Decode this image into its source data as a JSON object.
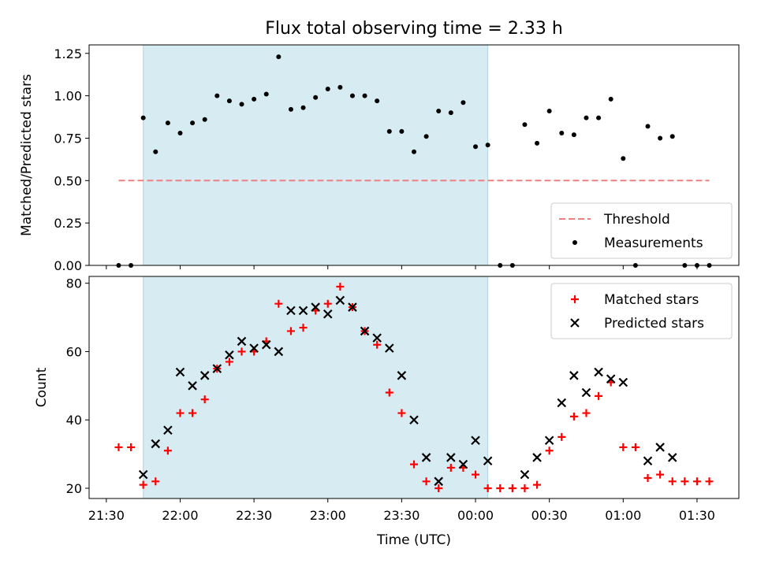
{
  "chart_data": {
    "title": "Flux total observing time = 2.33 h",
    "xlabel": "Time (UTC)",
    "x_ticks": [
      "21:30",
      "22:00",
      "22:30",
      "23:00",
      "23:30",
      "00:00",
      "00:30",
      "01:00",
      "01:30"
    ],
    "shaded_interval": {
      "start": "21:45",
      "end": "00:05",
      "color": "#add8e6"
    },
    "panels": [
      {
        "type": "scatter",
        "ylabel": "Matched/Predicted stars",
        "ylim": [
          0,
          1.3
        ],
        "y_ticks": [
          "0.00",
          "0.25",
          "0.50",
          "0.75",
          "1.00",
          "1.25"
        ],
        "legend_position": "lower-right",
        "threshold": {
          "name": "Threshold",
          "value": 0.5,
          "x_range": [
            "21:35",
            "01:35"
          ],
          "color": "#f08080"
        },
        "series": [
          {
            "name": "Measurements",
            "color": "#000000",
            "points": [
              [
                "21:35",
                0.0
              ],
              [
                "21:40",
                0.0
              ],
              [
                "21:45",
                0.87
              ],
              [
                "21:50",
                0.67
              ],
              [
                "21:55",
                0.84
              ],
              [
                "22:00",
                0.78
              ],
              [
                "22:05",
                0.84
              ],
              [
                "22:10",
                0.86
              ],
              [
                "22:15",
                1.0
              ],
              [
                "22:20",
                0.97
              ],
              [
                "22:25",
                0.95
              ],
              [
                "22:30",
                0.98
              ],
              [
                "22:35",
                1.01
              ],
              [
                "22:40",
                1.23
              ],
              [
                "22:45",
                0.92
              ],
              [
                "22:50",
                0.93
              ],
              [
                "22:55",
                0.99
              ],
              [
                "23:00",
                1.04
              ],
              [
                "23:05",
                1.05
              ],
              [
                "23:10",
                1.0
              ],
              [
                "23:15",
                1.0
              ],
              [
                "23:20",
                0.97
              ],
              [
                "23:25",
                0.79
              ],
              [
                "23:30",
                0.79
              ],
              [
                "23:35",
                0.67
              ],
              [
                "23:40",
                0.76
              ],
              [
                "23:45",
                0.91
              ],
              [
                "23:50",
                0.9
              ],
              [
                "23:55",
                0.96
              ],
              [
                "00:00",
                0.7
              ],
              [
                "00:05",
                0.71
              ],
              [
                "00:10",
                0.0
              ],
              [
                "00:15",
                0.0
              ],
              [
                "00:20",
                0.83
              ],
              [
                "00:25",
                0.72
              ],
              [
                "00:30",
                0.91
              ],
              [
                "00:35",
                0.78
              ],
              [
                "00:40",
                0.77
              ],
              [
                "00:45",
                0.87
              ],
              [
                "00:50",
                0.87
              ],
              [
                "00:55",
                0.98
              ],
              [
                "01:00",
                0.63
              ],
              [
                "01:05",
                0.0
              ],
              [
                "01:10",
                0.82
              ],
              [
                "01:15",
                0.75
              ],
              [
                "01:20",
                0.76
              ],
              [
                "01:25",
                0.0
              ],
              [
                "01:30",
                0.0
              ],
              [
                "01:35",
                0.0
              ]
            ]
          }
        ]
      },
      {
        "type": "scatter",
        "ylabel": "Count",
        "ylim": [
          17,
          82
        ],
        "y_ticks": [
          "20",
          "40",
          "60",
          "80"
        ],
        "legend_position": "upper-right",
        "series": [
          {
            "name": "Matched stars",
            "marker": "plus",
            "color": "#ff0000",
            "points": [
              [
                "21:35",
                32
              ],
              [
                "21:40",
                32
              ],
              [
                "21:45",
                21
              ],
              [
                "21:50",
                22
              ],
              [
                "21:55",
                31
              ],
              [
                "22:00",
                42
              ],
              [
                "22:05",
                42
              ],
              [
                "22:10",
                46
              ],
              [
                "22:15",
                55
              ],
              [
                "22:20",
                57
              ],
              [
                "22:25",
                60
              ],
              [
                "22:30",
                60
              ],
              [
                "22:35",
                63
              ],
              [
                "22:40",
                74
              ],
              [
                "22:45",
                66
              ],
              [
                "22:50",
                67
              ],
              [
                "22:55",
                72
              ],
              [
                "23:00",
                74
              ],
              [
                "23:05",
                79
              ],
              [
                "23:10",
                73
              ],
              [
                "23:15",
                66
              ],
              [
                "23:20",
                62
              ],
              [
                "23:25",
                48
              ],
              [
                "23:30",
                42
              ],
              [
                "23:35",
                27
              ],
              [
                "23:40",
                22
              ],
              [
                "23:45",
                20
              ],
              [
                "23:50",
                26
              ],
              [
                "23:55",
                26
              ],
              [
                "00:00",
                24
              ],
              [
                "00:05",
                20
              ],
              [
                "00:10",
                20
              ],
              [
                "00:15",
                20
              ],
              [
                "00:20",
                20
              ],
              [
                "00:25",
                21
              ],
              [
                "00:30",
                31
              ],
              [
                "00:35",
                35
              ],
              [
                "00:40",
                41
              ],
              [
                "00:45",
                42
              ],
              [
                "00:50",
                47
              ],
              [
                "00:55",
                51
              ],
              [
                "01:00",
                32
              ],
              [
                "01:05",
                32
              ],
              [
                "01:10",
                23
              ],
              [
                "01:15",
                24
              ],
              [
                "01:20",
                22
              ],
              [
                "01:25",
                22
              ],
              [
                "01:30",
                22
              ],
              [
                "01:35",
                22
              ]
            ]
          },
          {
            "name": "Predicted stars",
            "marker": "x",
            "color": "#000000",
            "points": [
              [
                "21:45",
                24
              ],
              [
                "21:50",
                33
              ],
              [
                "21:55",
                37
              ],
              [
                "22:00",
                54
              ],
              [
                "22:05",
                50
              ],
              [
                "22:10",
                53
              ],
              [
                "22:15",
                55
              ],
              [
                "22:20",
                59
              ],
              [
                "22:25",
                63
              ],
              [
                "22:30",
                61
              ],
              [
                "22:35",
                62
              ],
              [
                "22:40",
                60
              ],
              [
                "22:45",
                72
              ],
              [
                "22:50",
                72
              ],
              [
                "22:55",
                73
              ],
              [
                "23:00",
                71
              ],
              [
                "23:05",
                75
              ],
              [
                "23:10",
                73
              ],
              [
                "23:15",
                66
              ],
              [
                "23:20",
                64
              ],
              [
                "23:25",
                61
              ],
              [
                "23:30",
                53
              ],
              [
                "23:35",
                40
              ],
              [
                "23:40",
                29
              ],
              [
                "23:45",
                22
              ],
              [
                "23:50",
                29
              ],
              [
                "23:55",
                27
              ],
              [
                "00:00",
                34
              ],
              [
                "00:05",
                28
              ],
              [
                "00:20",
                24
              ],
              [
                "00:25",
                29
              ],
              [
                "00:30",
                34
              ],
              [
                "00:35",
                45
              ],
              [
                "00:40",
                53
              ],
              [
                "00:45",
                48
              ],
              [
                "00:50",
                54
              ],
              [
                "00:55",
                52
              ],
              [
                "01:00",
                51
              ],
              [
                "01:10",
                28
              ],
              [
                "01:15",
                32
              ],
              [
                "01:20",
                29
              ]
            ]
          }
        ]
      }
    ]
  }
}
